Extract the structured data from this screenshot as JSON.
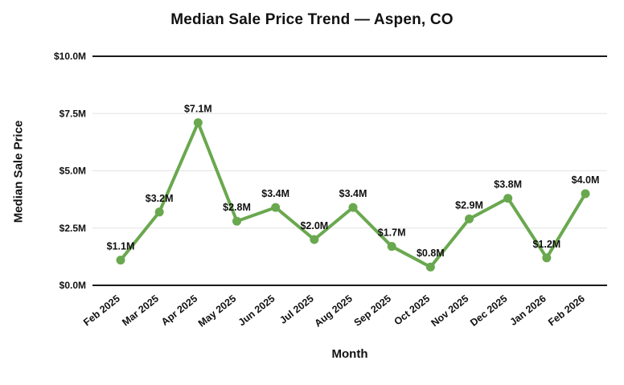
{
  "chart_data": {
    "type": "line",
    "title": "Median Sale Price Trend — Aspen, CO",
    "xlabel": "Month",
    "ylabel": "Median Sale Price",
    "categories": [
      "Feb 2025",
      "Mar 2025",
      "Apr 2025",
      "May 2025",
      "Jun 2025",
      "Jul 2025",
      "Aug 2025",
      "Sep 2025",
      "Oct 2025",
      "Nov 2025",
      "Dec 2025",
      "Jan 2026",
      "Feb 2026"
    ],
    "values": [
      1.1,
      3.2,
      7.1,
      2.8,
      3.4,
      2.0,
      3.4,
      1.7,
      0.8,
      2.9,
      3.8,
      1.2,
      4.0
    ],
    "point_labels": [
      "$1.1M",
      "$3.2M",
      "$7.1M",
      "$2.8M",
      "$3.4M",
      "$2.0M",
      "$3.4M",
      "$1.7M",
      "$0.8M",
      "$2.9M",
      "$3.8M",
      "$1.2M",
      "$4.0M"
    ],
    "ylim": [
      0,
      10
    ],
    "yticks": [
      0,
      2.5,
      5,
      7.5,
      10
    ],
    "ytick_labels": [
      "$0.0M",
      "$2.5M",
      "$5.0M",
      "$7.5M",
      "$10.0M"
    ],
    "line_color": "#6aa84f",
    "grid_color": "#e3e3e3",
    "axis_color": "#1a1a1a",
    "label_color": "#111111",
    "grid": "horizontal",
    "legend": "none"
  }
}
